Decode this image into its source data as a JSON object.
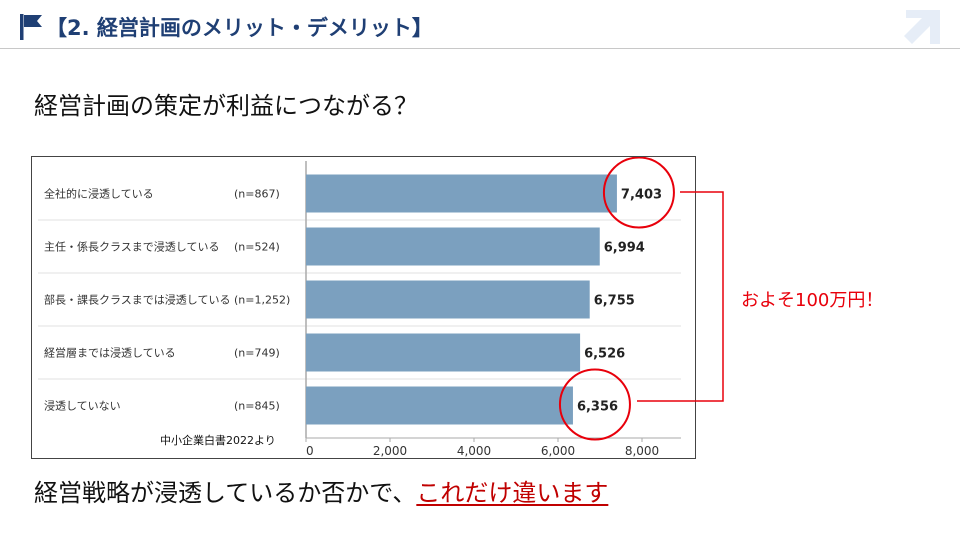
{
  "header": {
    "title": "【2. 経営計画のメリット・デメリット】"
  },
  "question": "経営計画の策定が利益につながる？",
  "chart_data": {
    "type": "bar",
    "orientation": "horizontal",
    "categories": [
      "全社的に浸透している",
      "主任・係長クラスまで浸透している",
      "部長・課長クラスまでは浸透している",
      "経営層までは浸透している",
      "浸透していない"
    ],
    "sample_sizes": [
      "(n=867)",
      "(n=524)",
      "(n=1,252)",
      "(n=749)",
      "(n=845)"
    ],
    "values": [
      7403,
      6994,
      6755,
      6526,
      6356
    ],
    "value_labels": [
      "7,403",
      "6,994",
      "6,755",
      "6,526",
      "6,356"
    ],
    "xlim": [
      0,
      8000
    ],
    "xticks": [
      0,
      2000,
      4000,
      6000,
      8000
    ],
    "xtick_labels": [
      "0",
      "2,000",
      "4,000",
      "6,000",
      "8,000"
    ],
    "source": "中小企業白書2022より",
    "bar_color": "#7ba0bf",
    "highlight_color": "#e8000b",
    "highlighted": [
      0,
      4
    ]
  },
  "annotation": "およそ100万円！",
  "conclusion": {
    "text": "経営戦略が浸透しているか否かで、",
    "highlight": "これだけ違います"
  }
}
